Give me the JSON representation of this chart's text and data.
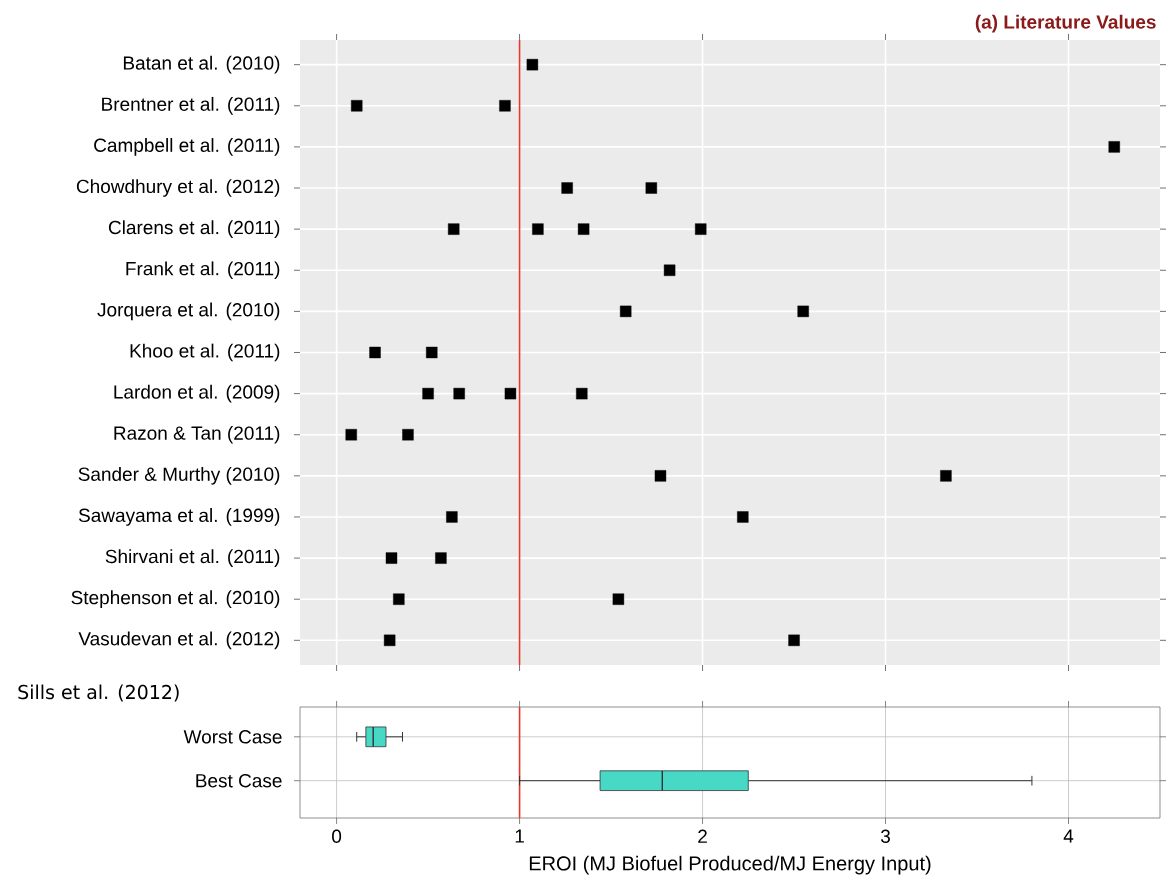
{
  "chart_data": [
    {
      "type": "scatter",
      "orientation": "horizontal",
      "title": "(a) Literature Values",
      "categories": [
        "Batan et al. (2010)",
        "Brentner et al. (2011)",
        "Campbell et al. (2011)",
        "Chowdhury et al. (2012)",
        "Clarens et al. (2011)",
        "Frank et al. (2011)",
        "Jorquera et al. (2010)",
        "Khoo et al. (2011)",
        "Lardon et al. (2009)",
        "Razon & Tan (2011)",
        "Sander & Murthy (2010)",
        "Sawayama et al. (1999)",
        "Shirvani et al. (2011)",
        "Stephenson et al. (2010)",
        "Vasudevan et al. (2012)"
      ],
      "series": [
        {
          "color": "#000000",
          "values": [
            1.07,
            0.11,
            4.25,
            1.26,
            0.64,
            1.82,
            1.58,
            0.21,
            0.5,
            0.08,
            1.77,
            0.63,
            0.3,
            0.34,
            0.29
          ]
        },
        {
          "color": "#000000",
          "values": [
            null,
            0.92,
            null,
            1.72,
            1.1,
            null,
            2.55,
            0.52,
            0.67,
            0.39,
            3.33,
            2.22,
            0.57,
            1.54,
            2.5
          ]
        },
        {
          "color": "#000000",
          "values": [
            null,
            null,
            null,
            null,
            1.35,
            null,
            null,
            null,
            0.95,
            null,
            null,
            null,
            null,
            null,
            null
          ]
        },
        {
          "color": "#000000",
          "values": [
            null,
            null,
            null,
            null,
            1.99,
            null,
            null,
            null,
            1.34,
            null,
            null,
            null,
            null,
            null,
            null
          ]
        }
      ],
      "xlim": [
        -0.2,
        4.5
      ],
      "xticks": [
        {
          "value": 0,
          "label": null
        },
        {
          "value": 1,
          "label": null
        },
        {
          "value": 2,
          "label": null
        },
        {
          "value": 3,
          "label": null
        },
        {
          "value": 4,
          "label": null
        }
      ],
      "ref_lines": [
        {
          "axis": "x",
          "value": 1,
          "color": "#e8372f"
        }
      ],
      "grid": true,
      "marker": "square",
      "tick_labels": "y"
    },
    {
      "type": "box",
      "orientation": "horizontal",
      "title": "Sills et al. (2012)",
      "categories": [
        "Worst Case",
        "Best Case"
      ],
      "boxes": [
        {
          "low": 0.11,
          "q1": 0.16,
          "median": 0.2,
          "q3": 0.27,
          "high": 0.36
        },
        {
          "low": 1.0,
          "q1": 1.44,
          "median": 1.78,
          "q3": 2.25,
          "high": 3.8
        }
      ],
      "color": "#48d9c6",
      "xlim": [
        -0.2,
        4.5
      ],
      "xticks": [
        0,
        1,
        2,
        3,
        4
      ],
      "xlabel": "EROI (MJ Biofuel Produced/MJ Energy Input)",
      "ref_lines": [
        {
          "axis": "x",
          "value": 1,
          "color": "#e8372f"
        }
      ],
      "grid": true
    }
  ]
}
